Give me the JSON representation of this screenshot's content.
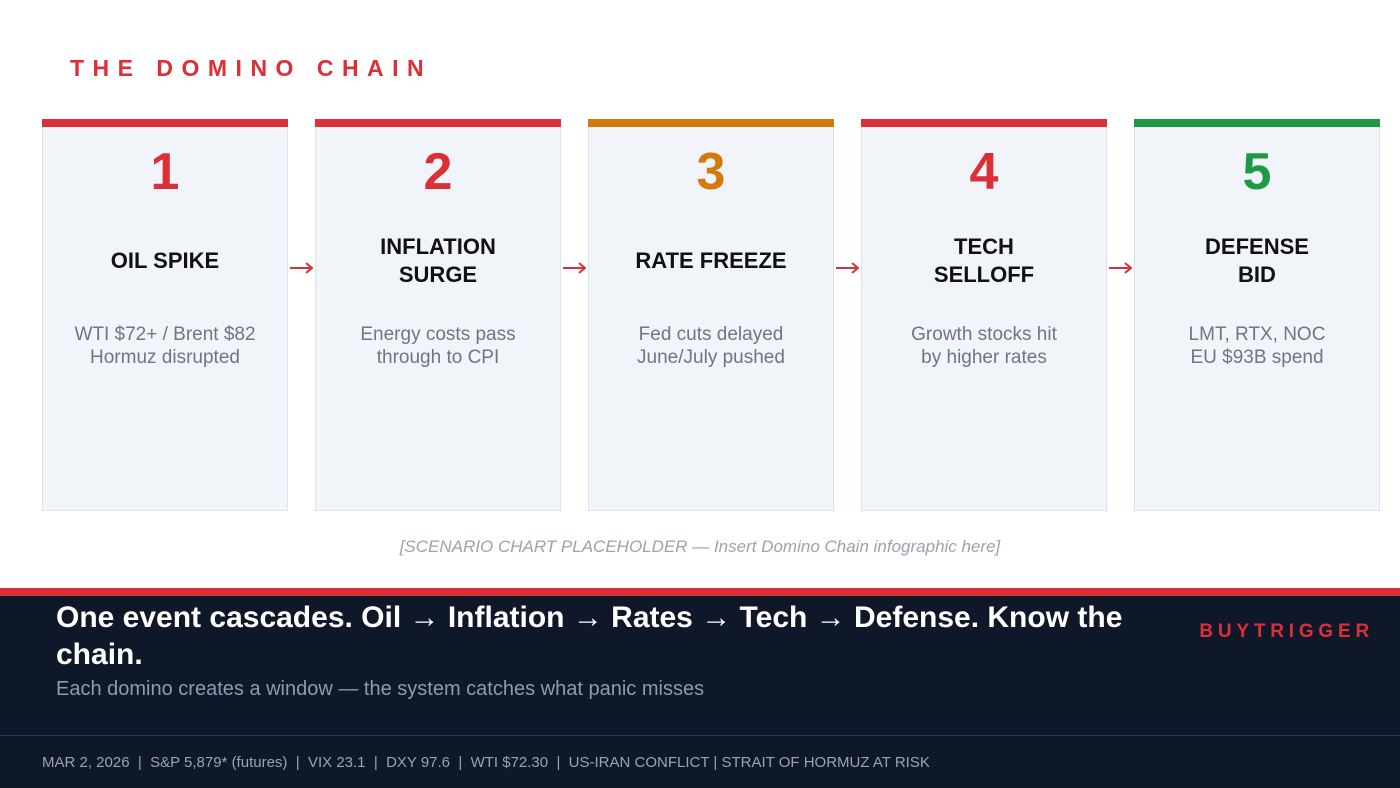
{
  "section_title": "THE DOMINO CHAIN",
  "colors": {
    "red": "#dc2f37",
    "orange": "#d47a0c",
    "green": "#1e9a45",
    "navy": "#0f1829"
  },
  "cards": [
    {
      "number": "1",
      "title": "OIL SPIKE",
      "desc": "WTI $72+ / Brent $82\nHormuz disrupted",
      "accent": "#dc2f37"
    },
    {
      "number": "2",
      "title": "INFLATION\nSURGE",
      "desc": "Energy costs pass\nthrough to CPI",
      "accent": "#dc2f37"
    },
    {
      "number": "3",
      "title": "RATE FREEZE",
      "desc": "Fed cuts delayed\nJune/July pushed",
      "accent": "#d47a0c"
    },
    {
      "number": "4",
      "title": "TECH\nSELLOFF",
      "desc": "Growth stocks hit\nby higher rates",
      "accent": "#dc2f37"
    },
    {
      "number": "5",
      "title": "DEFENSE\nBID",
      "desc": "LMT, RTX, NOC\nEU $93B spend",
      "accent": "#1e9a45"
    }
  ],
  "placeholder": "[SCENARIO CHART PLACEHOLDER — Insert Domino Chain infographic here]",
  "footer": {
    "headline": "One event cascades. Oil → Inflation → Rates → Tech → Defense. Know the chain.",
    "subline": "Each domino creates a window — the system catches what panic misses",
    "brand": "BUYTRIGGER",
    "ticker": "MAR 2, 2026  |  S&P 5,879* (futures)  |  VIX 23.1  |  DXY 97.6  |  WTI $72.30  |  US-IRAN CONFLICT | STRAIT OF HORMUZ AT RISK"
  }
}
